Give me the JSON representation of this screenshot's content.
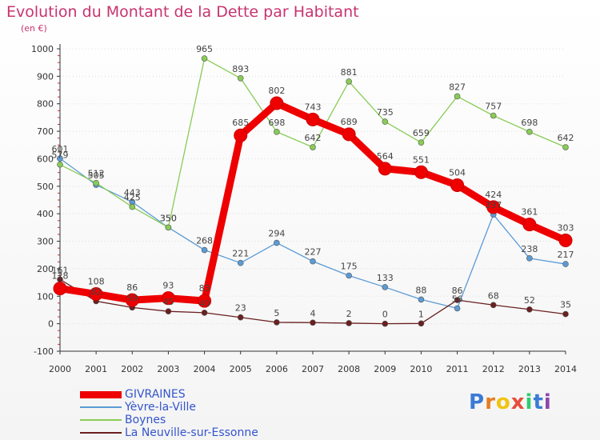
{
  "colors": {
    "title": "#c8336e",
    "axis": "#333333",
    "grid": "#dddddd",
    "legend_text": "#3355cc"
  },
  "logo": {
    "text": "Proxiti"
  },
  "chart_data": {
    "type": "line",
    "title": "Evolution du Montant de la Dette par Habitant",
    "subtitle": "(en €)",
    "xlabel": "",
    "ylabel": "",
    "x": [
      "2000",
      "2001",
      "2002",
      "2003",
      "2004",
      "2005",
      "2006",
      "2007",
      "2008",
      "2009",
      "2010",
      "2011",
      "2012",
      "2013",
      "2014"
    ],
    "ylim": [
      -100,
      1000
    ],
    "yticks": [
      -100,
      0,
      100,
      200,
      300,
      400,
      500,
      600,
      700,
      800,
      900,
      1000
    ],
    "grid": true,
    "legend_position": "bottom-left",
    "series": [
      {
        "name": "GIVRAINES",
        "color": "#ee0000",
        "width": 9,
        "marker": 8,
        "values": [
          128,
          108,
          86,
          93,
          83,
          685,
          802,
          743,
          689,
          564,
          551,
          504,
          424,
          361,
          303
        ]
      },
      {
        "name": "Yèvre-la-Ville",
        "color": "#5b9bd5",
        "width": 1.3,
        "marker": 3.5,
        "values": [
          601,
          505,
          443,
          350,
          268,
          221,
          294,
          227,
          175,
          133,
          88,
          56,
          397,
          238,
          217
        ]
      },
      {
        "name": "Boynes",
        "color": "#88cc55",
        "width": 1.3,
        "marker": 3.5,
        "values": [
          579,
          512,
          425,
          350,
          965,
          893,
          698,
          642,
          881,
          735,
          659,
          827,
          757,
          698,
          642
        ]
      },
      {
        "name": "La Neuville-sur-Essonne",
        "color": "#6b1f1f",
        "width": 1.3,
        "marker": 3.5,
        "values": [
          161,
          82,
          59,
          45,
          40,
          23,
          5,
          4,
          2,
          0,
          1,
          86,
          68,
          52,
          35
        ]
      }
    ]
  }
}
